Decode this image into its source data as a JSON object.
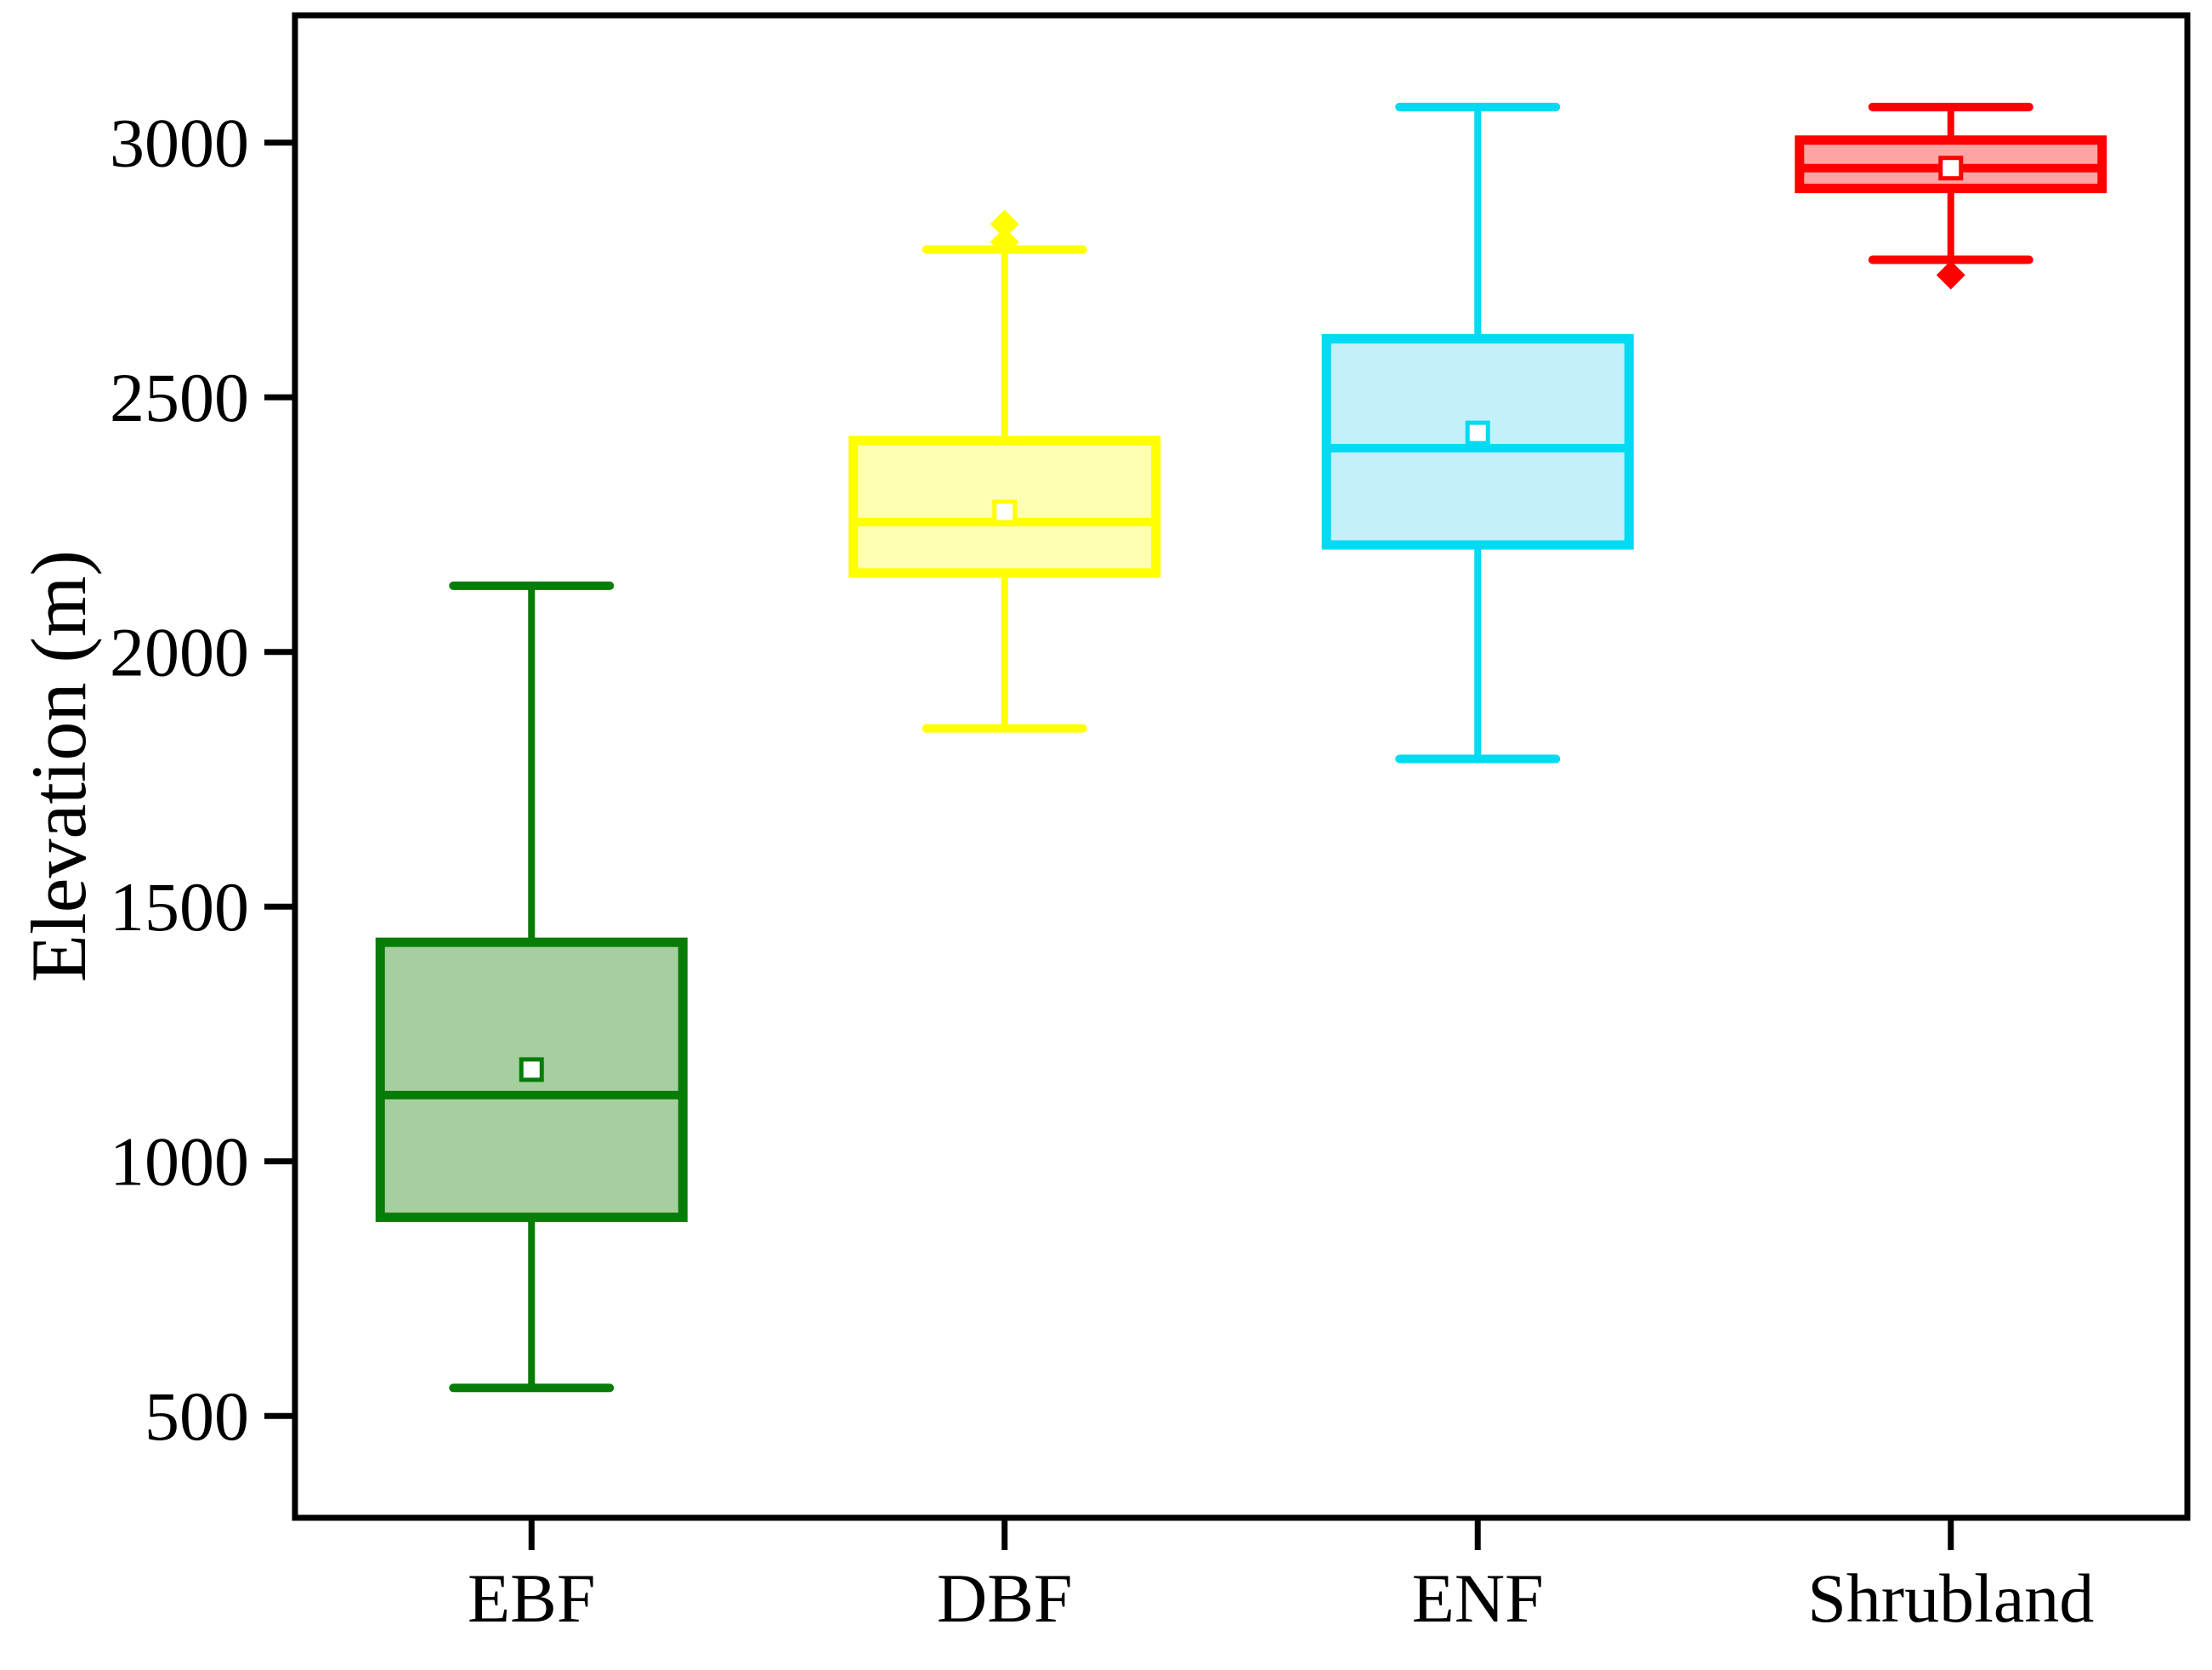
{
  "figure": {
    "background": "#ffffff",
    "frame_color": "#000000"
  },
  "chart_data": {
    "type": "box",
    "title": "",
    "xlabel": "",
    "ylabel": "Elevation (m)",
    "categories": [
      "EBF",
      "DBF",
      "ENF",
      "Shrubland"
    ],
    "ylim": [
      300,
      3250
    ],
    "yticks": [
      500,
      1000,
      1500,
      2000,
      2500,
      3000
    ],
    "grid": false,
    "legend": "none",
    "mean_marker": "open-square",
    "outlier_marker": "filled-diamond",
    "series": [
      {
        "name": "EBF",
        "color": "#077c07",
        "fill": "#a6cfa0",
        "whisker_low": 555,
        "q1": 890,
        "median": 1130,
        "mean": 1180,
        "q3": 1430,
        "whisker_high": 2130,
        "outliers": []
      },
      {
        "name": "DBF",
        "color": "#ffff00",
        "fill": "#ffffb3",
        "whisker_low": 1850,
        "q1": 2155,
        "median": 2255,
        "mean": 2275,
        "q3": 2415,
        "whisker_high": 2790,
        "outliers": [
          2840,
          2805
        ]
      },
      {
        "name": "ENF",
        "color": "#00daf2",
        "fill": "#c3f0fb",
        "whisker_low": 1790,
        "q1": 2210,
        "median": 2400,
        "mean": 2430,
        "q3": 2615,
        "whisker_high": 3070,
        "outliers": []
      },
      {
        "name": "Shrubland",
        "color": "#ff0000",
        "fill": "#ffa4a4",
        "whisker_low": 2770,
        "q1": 2910,
        "median": 2950,
        "mean": 2950,
        "q3": 3005,
        "whisker_high": 3070,
        "outliers": [
          2740
        ]
      }
    ]
  }
}
